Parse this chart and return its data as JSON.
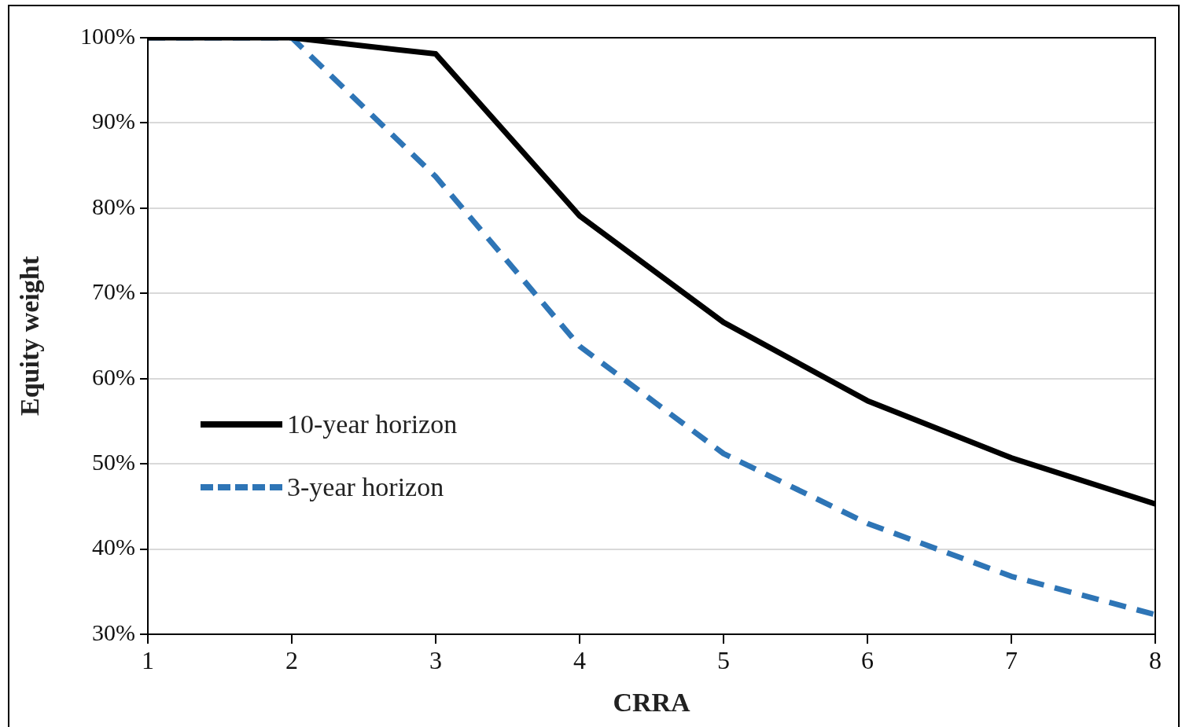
{
  "chart_data": {
    "type": "line",
    "xlabel": "CRRA",
    "ylabel": "Equity weight",
    "x": [
      1,
      2,
      3,
      4,
      5,
      6,
      7,
      8
    ],
    "series": [
      {
        "name": "10-year horizon",
        "color": "#000000",
        "line_style": "solid",
        "values": [
          100,
          100,
          98.1,
          79.1,
          66.6,
          57.4,
          50.7,
          45.3
        ]
      },
      {
        "name": "3-year horizon",
        "color": "#2e75b6",
        "line_style": "dashed",
        "values": [
          100,
          100,
          83.7,
          63.8,
          51.2,
          43,
          36.8,
          32.3
        ]
      }
    ],
    "xlim": [
      1,
      8
    ],
    "xticks": [
      1,
      2,
      3,
      4,
      5,
      6,
      7,
      8
    ],
    "ylim": [
      30,
      100
    ],
    "yticks": [
      {
        "value": 30,
        "label": "30%"
      },
      {
        "value": 40,
        "label": "40%"
      },
      {
        "value": 50,
        "label": "50%"
      },
      {
        "value": 60,
        "label": "60%"
      },
      {
        "value": 70,
        "label": "70%"
      },
      {
        "value": 80,
        "label": "80%"
      },
      {
        "value": 90,
        "label": "90%"
      },
      {
        "value": 100,
        "label": "100%"
      }
    ],
    "grid": "y",
    "legend": "left",
    "marker": "none"
  }
}
